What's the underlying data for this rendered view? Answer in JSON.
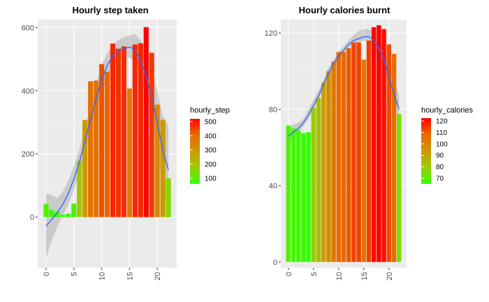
{
  "chart_data": [
    {
      "type": "bar",
      "title": "Hourly step taken",
      "x": [
        0,
        1,
        2,
        3,
        4,
        5,
        6,
        7,
        8,
        9,
        10,
        11,
        12,
        13,
        14,
        15,
        16,
        17,
        18,
        19,
        20,
        21,
        22
      ],
      "values": [
        42,
        23,
        17,
        8,
        11,
        43,
        178,
        307,
        430,
        432,
        484,
        460,
        549,
        533,
        540,
        407,
        546,
        550,
        601,
        520,
        356,
        308,
        123
      ],
      "smooth": [
        -28,
        -8,
        15,
        40,
        75,
        120,
        175,
        240,
        310,
        375,
        435,
        480,
        510,
        525,
        533,
        538,
        530,
        495,
        445,
        380,
        300,
        210,
        150
      ],
      "band_lower": [
        -130,
        -75,
        -30,
        5,
        40,
        85,
        140,
        200,
        270,
        335,
        395,
        440,
        475,
        495,
        505,
        505,
        490,
        445,
        380,
        300,
        210,
        100,
        0
      ],
      "band_upper": [
        75,
        70,
        60,
        80,
        115,
        160,
        215,
        285,
        355,
        420,
        480,
        520,
        545,
        560,
        570,
        575,
        580,
        560,
        520,
        470,
        400,
        320,
        290
      ],
      "xlim": [
        -1.5,
        23.5
      ],
      "ylim": [
        -160,
        625
      ],
      "xticks": [
        0,
        5,
        10,
        15,
        20
      ],
      "yticks": [
        0,
        200,
        400,
        600
      ],
      "legend": {
        "title": "hourly_step",
        "labels": [
          "500",
          "400",
          "300",
          "200",
          "100"
        ],
        "position": "right"
      },
      "grid": true
    },
    {
      "type": "bar",
      "title": "Hourly calories burnt",
      "x": [
        0,
        1,
        2,
        3,
        4,
        5,
        6,
        7,
        8,
        9,
        10,
        11,
        12,
        13,
        14,
        15,
        16,
        17,
        18,
        19,
        20,
        21,
        22
      ],
      "values": [
        71.5,
        70,
        69,
        67.5,
        68,
        81,
        86,
        94,
        100,
        105,
        110,
        110,
        112,
        115,
        115,
        106,
        116,
        123,
        124,
        122,
        114,
        109,
        77.5
      ],
      "smooth": [
        66,
        68,
        70,
        73,
        77,
        82,
        87,
        93,
        99,
        104,
        108,
        111,
        114,
        116,
        117,
        118,
        118,
        116,
        112,
        106,
        97,
        88,
        80
      ],
      "band_lower": [
        62,
        65,
        68,
        71,
        75,
        80,
        85,
        91,
        97,
        102,
        106,
        109,
        112,
        114,
        115,
        116,
        115,
        112,
        107,
        101,
        92,
        83,
        75
      ],
      "band_upper": [
        71,
        72,
        73,
        75,
        80,
        85,
        90,
        96,
        102,
        106,
        110,
        113,
        116,
        119,
        121,
        122,
        122,
        121,
        117,
        112,
        104,
        96,
        87
      ],
      "xlim": [
        -1.5,
        23.5
      ],
      "ylim": [
        -3,
        127
      ],
      "xticks": [
        0,
        5,
        10,
        15,
        20
      ],
      "yticks": [
        0,
        40,
        80,
        120
      ],
      "legend": {
        "title": "hourly_calories",
        "labels": [
          "120",
          "110",
          "100",
          "90",
          "80",
          "70"
        ],
        "position": "right"
      },
      "grid": true
    }
  ]
}
